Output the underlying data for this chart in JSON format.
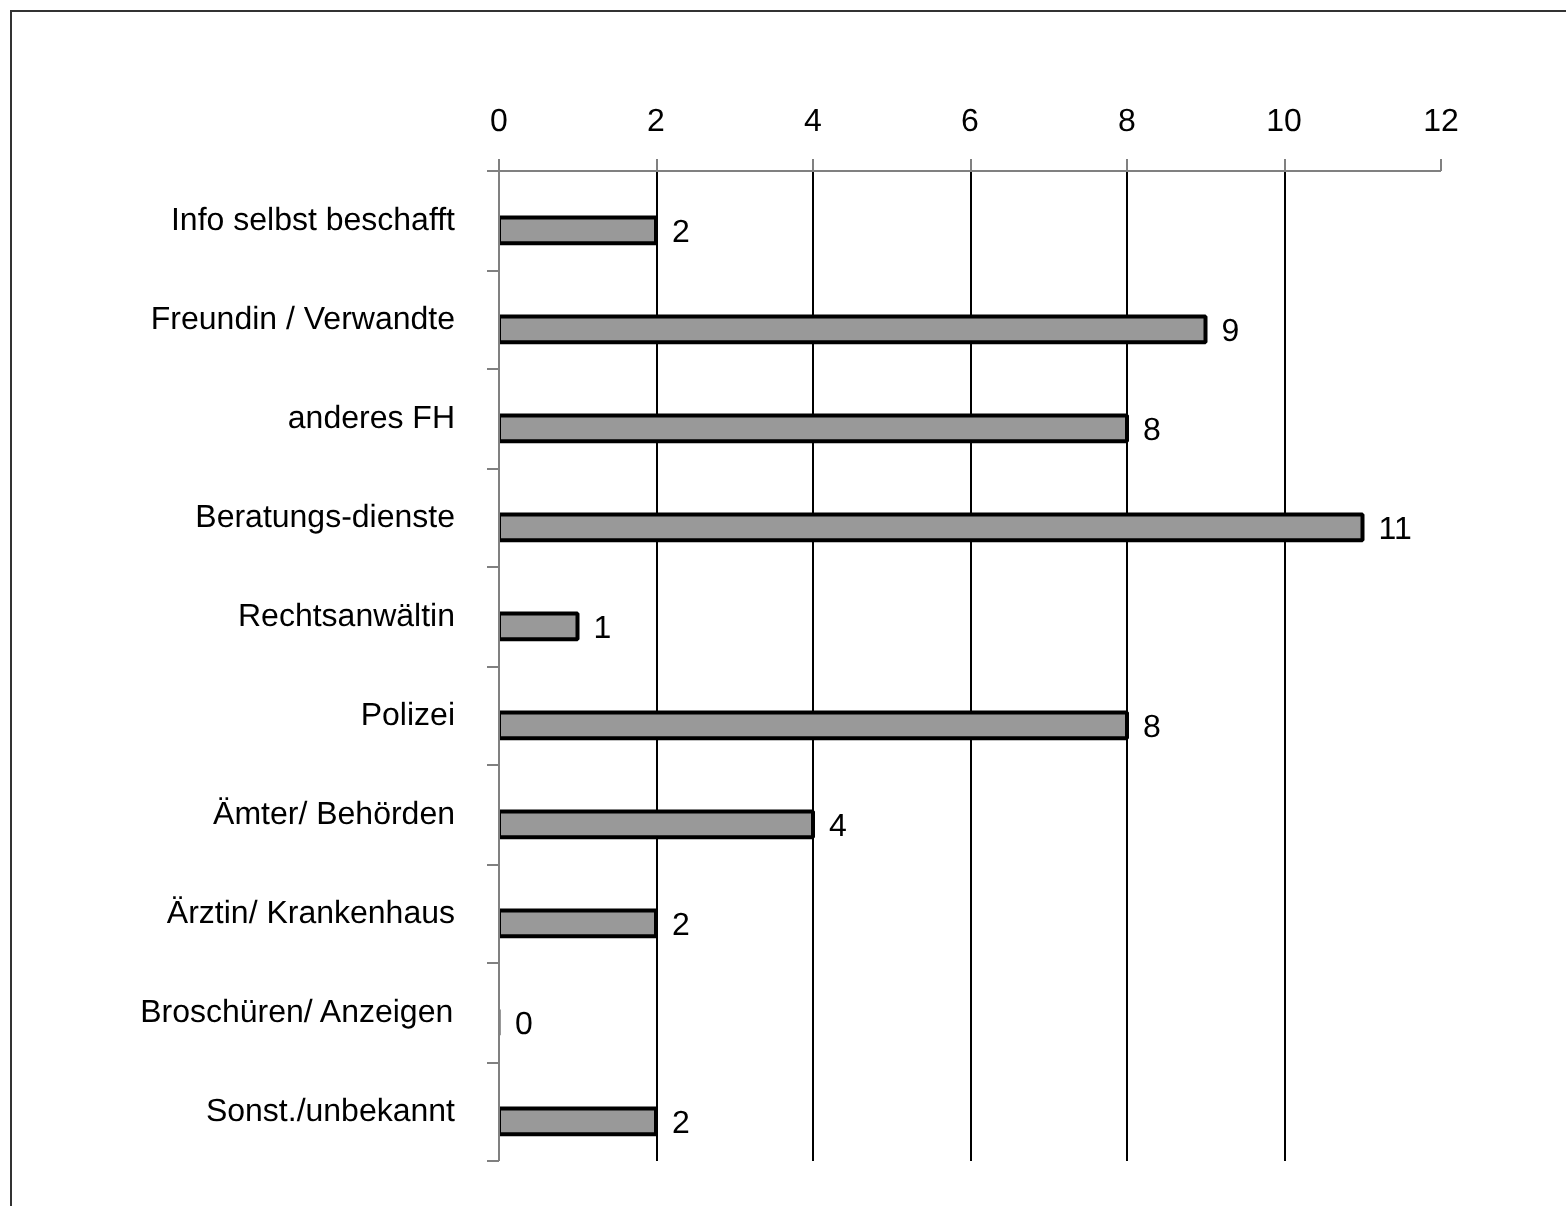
{
  "chart_data": {
    "type": "bar",
    "orientation": "horizontal",
    "categories": [
      "Info selbst beschafft",
      "Freundin / Verwandte",
      "anderes FH",
      "Beratungs-dienste",
      "Rechtsanwältin",
      "Polizei",
      "Ämter/ Behörden",
      "Ärztin/ Krankenhaus",
      "Broschüren/ Anzeigen",
      "Sonst./unbekannt"
    ],
    "values": [
      2,
      9,
      8,
      11,
      1,
      8,
      4,
      2,
      0,
      2
    ],
    "color": "#999999",
    "xlim": [
      0,
      12
    ],
    "xticks": [
      0,
      2,
      4,
      6,
      8,
      10,
      12
    ],
    "grid": "x",
    "data_labels": true
  }
}
